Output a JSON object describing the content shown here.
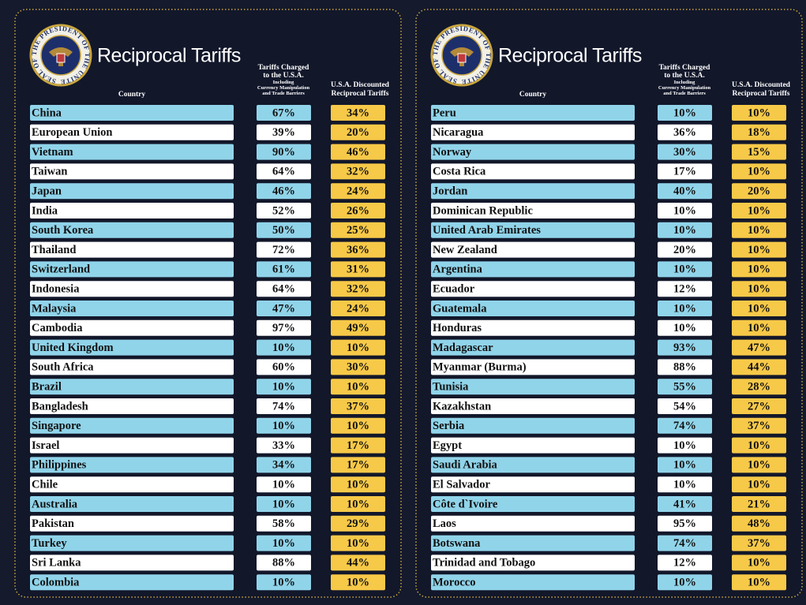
{
  "panels": [
    {
      "seal_text": "SEAL OF THE PRESIDENT OF THE UNITED STATES",
      "title": "Reciprocal Tariffs",
      "headers": {
        "country": "Country",
        "charged": [
          "Tariffs Charged",
          "to the U.S.A.",
          "Including",
          "Currency Manipulation",
          "and Trade Barriers"
        ],
        "discounted": [
          "U.S.A. Discounted",
          "Reciprocal Tariffs"
        ]
      },
      "rows": [
        [
          "China",
          "67%",
          "34%"
        ],
        [
          "European Union",
          "39%",
          "20%"
        ],
        [
          "Vietnam",
          "90%",
          "46%"
        ],
        [
          "Taiwan",
          "64%",
          "32%"
        ],
        [
          "Japan",
          "46%",
          "24%"
        ],
        [
          "India",
          "52%",
          "26%"
        ],
        [
          "South Korea",
          "50%",
          "25%"
        ],
        [
          "Thailand",
          "72%",
          "36%"
        ],
        [
          "Switzerland",
          "61%",
          "31%"
        ],
        [
          "Indonesia",
          "64%",
          "32%"
        ],
        [
          "Malaysia",
          "47%",
          "24%"
        ],
        [
          "Cambodia",
          "97%",
          "49%"
        ],
        [
          "United Kingdom",
          "10%",
          "10%"
        ],
        [
          "South Africa",
          "60%",
          "30%"
        ],
        [
          "Brazil",
          "10%",
          "10%"
        ],
        [
          "Bangladesh",
          "74%",
          "37%"
        ],
        [
          "Singapore",
          "10%",
          "10%"
        ],
        [
          "Israel",
          "33%",
          "17%"
        ],
        [
          "Philippines",
          "34%",
          "17%"
        ],
        [
          "Chile",
          "10%",
          "10%"
        ],
        [
          "Australia",
          "10%",
          "10%"
        ],
        [
          "Pakistan",
          "58%",
          "29%"
        ],
        [
          "Turkey",
          "10%",
          "10%"
        ],
        [
          "Sri Lanka",
          "88%",
          "44%"
        ],
        [
          "Colombia",
          "10%",
          "10%"
        ]
      ]
    },
    {
      "seal_text": "SEAL OF THE PRESIDENT OF THE UNITED STATES",
      "title": "Reciprocal Tariffs",
      "headers": {
        "country": "Country",
        "charged": [
          "Tariffs Charged",
          "to the U.S.A.",
          "Including",
          "Currency Manipulation",
          "and Trade Barriers"
        ],
        "discounted": [
          "U.S.A. Discounted",
          "Reciprocal Tariffs"
        ]
      },
      "rows": [
        [
          "Peru",
          "10%",
          "10%"
        ],
        [
          "Nicaragua",
          "36%",
          "18%"
        ],
        [
          "Norway",
          "30%",
          "15%"
        ],
        [
          "Costa Rica",
          "17%",
          "10%"
        ],
        [
          "Jordan",
          "40%",
          "20%"
        ],
        [
          "Dominican Republic",
          "10%",
          "10%"
        ],
        [
          "United Arab Emirates",
          "10%",
          "10%"
        ],
        [
          "New Zealand",
          "20%",
          "10%"
        ],
        [
          "Argentina",
          "10%",
          "10%"
        ],
        [
          "Ecuador",
          "12%",
          "10%"
        ],
        [
          "Guatemala",
          "10%",
          "10%"
        ],
        [
          "Honduras",
          "10%",
          "10%"
        ],
        [
          "Madagascar",
          "93%",
          "47%"
        ],
        [
          "Myanmar (Burma)",
          "88%",
          "44%"
        ],
        [
          "Tunisia",
          "55%",
          "28%"
        ],
        [
          "Kazakhstan",
          "54%",
          "27%"
        ],
        [
          "Serbia",
          "74%",
          "37%"
        ],
        [
          "Egypt",
          "10%",
          "10%"
        ],
        [
          "Saudi Arabia",
          "10%",
          "10%"
        ],
        [
          "El Salvador",
          "10%",
          "10%"
        ],
        [
          "Côte d`Ivoire",
          "41%",
          "21%"
        ],
        [
          "Laos",
          "95%",
          "48%"
        ],
        [
          "Botswana",
          "74%",
          "37%"
        ],
        [
          "Trinidad and Tobago",
          "12%",
          "10%"
        ],
        [
          "Morocco",
          "10%",
          "10%"
        ]
      ]
    }
  ]
}
